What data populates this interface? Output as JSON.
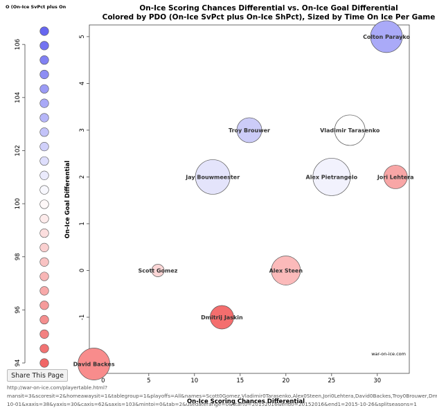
{
  "legend": {
    "title": "O (On-Ice SvPct plus On",
    "ticks": [
      "106",
      "104",
      "102",
      "100",
      "98",
      "96",
      "94"
    ]
  },
  "share_button": {
    "label": "Share This Page"
  },
  "url": {
    "line1": "http://war-on-ice.com/playertable.html?",
    "line2": "mansit=3&scoresit=2&homeawaysit=1&tablegroup=1&playoffs=All&names=Scott0Gomez,Vladimir0Tarasenko,Alex0Steen,Jori0Lehtera,David0Backes,Troy0Brouwer,Dmitrij0Jaskin,Jay0Bouwmeester,Alex0Pietrangelo,Colton0Parayko&start0=",
    "line3": "10-01&xaxis=38&yaxis=30&caxis=62&saxis=103&mintoi=0&tab=2&usedaterange=0&start0=20152016&end0=20152016&end1=2015-10-26&splitseasons=1"
  },
  "chart_data": {
    "type": "scatter",
    "title": "On-Ice Scoring Chances Differential vs. On-Ice Goal Differential",
    "subtitle": "Colored by PDO (On-Ice SvPct plus On-Ice ShPct), Sized by Time On Ice Per Game",
    "xlabel": "On-Ice Scoring Chances Differential",
    "ylabel": "On-Ice Goal Differential",
    "xlim": [
      -1.5,
      33.5
    ],
    "ylim": [
      -2.2,
      5.25
    ],
    "xticks": [
      0,
      5,
      10,
      15,
      20,
      25,
      30
    ],
    "yticks": [
      -2,
      -1,
      0,
      1,
      2,
      3,
      4,
      5
    ],
    "watermark": "war-on-ice.com",
    "points": [
      {
        "name": "Colton Parayko",
        "x": 31,
        "y": 5,
        "color": "#aaaaf8",
        "size": 23
      },
      {
        "name": "Troy Brouwer",
        "x": 16,
        "y": 3,
        "color": "#ccccf8",
        "size": 18
      },
      {
        "name": "Vladimir Tarasenko",
        "x": 27,
        "y": 3,
        "color": "#ffffff",
        "size": 22
      },
      {
        "name": "Jay Bouwmeester",
        "x": 12,
        "y": 2,
        "color": "#e4e4fb",
        "size": 25
      },
      {
        "name": "Alex Pietrangelo",
        "x": 25,
        "y": 2,
        "color": "#f2f2fd",
        "size": 27
      },
      {
        "name": "Jori Lehtera",
        "x": 32,
        "y": 2,
        "color": "#f8a6a6",
        "size": 17
      },
      {
        "name": "Scott Gomez",
        "x": 6,
        "y": 0,
        "color": "#fbd6d6",
        "size": 9
      },
      {
        "name": "Alex Steen",
        "x": 20,
        "y": 0,
        "color": "#fbbaba",
        "size": 21
      },
      {
        "name": "Dmitrij Jaskin",
        "x": 13,
        "y": -1,
        "color": "#f46e6e",
        "size": 17
      },
      {
        "name": "David Backes",
        "x": -1,
        "y": -2,
        "color": "#f88c8c",
        "size": 23
      }
    ]
  }
}
